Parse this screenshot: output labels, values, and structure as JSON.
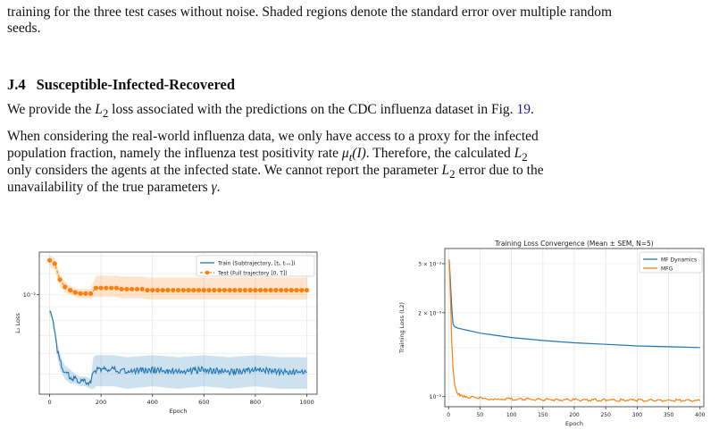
{
  "caption": {
    "line1": "training for the three test cases without noise. Shaded regions denote the standard error over multiple random",
    "line2": "seeds."
  },
  "section": {
    "number": "J.4",
    "title": "Susceptible-Infected-Recovered"
  },
  "para1": {
    "before": "We provide the ",
    "loss": "L",
    "loss_sub": "2",
    "middle": " loss associated with the predictions on the CDC influenza dataset in Fig. ",
    "fig_ref": "19",
    "end": "."
  },
  "para2": {
    "l1_a": "When considering the real-world influenza data, we only have access to a proxy for the infected",
    "l2_a": "population fraction, namely the influenza test positivity rate ",
    "l2_math": "μ",
    "l2_math_sub": "t",
    "l2_math_arg": "(I)",
    "l2_b": ". Therefore, the calculated ",
    "l2_loss": "L",
    "l2_loss_sub": "2",
    "l3_a": "only considers the agents at the infected state. We cannot report the parameter ",
    "l3_loss": "L",
    "l3_loss_sub": "2",
    "l3_b": " error due to the",
    "l4_a": "unavailability of the true parameters ",
    "l4_math": "γ",
    "l4_b": "."
  },
  "colors": {
    "train": "#1f77b4",
    "test": "#ff7f0e",
    "mfg": "#ff7f0e",
    "mfdyn": "#1f77b4"
  },
  "chart_data": [
    {
      "type": "line",
      "title": "",
      "xlabel": "Epoch",
      "ylabel": "L₂ Loss",
      "xlim": [
        -40,
        1040
      ],
      "ylim_log": [
        0.0042,
        0.0145
      ],
      "yscale": "log",
      "xticks": [
        "0",
        "200",
        "400",
        "600",
        "800",
        "1000"
      ],
      "yticks": [
        {
          "value": 0.01,
          "label": "10⁻²"
        }
      ],
      "legend_position": "top-right",
      "grid": true,
      "series": [
        {
          "name": "Train (Subtrajectory, [tᵢ, tᵢ₊ₖ])",
          "marker": "none",
          "x": [
            0,
            10,
            20,
            30,
            40,
            50,
            60,
            70,
            80,
            100,
            120,
            140,
            160,
            170,
            180,
            200,
            250,
            300,
            400,
            500,
            600,
            700,
            800,
            900,
            1000
          ],
          "y": [
            0.0086,
            0.0082,
            0.0074,
            0.0062,
            0.0056,
            0.0053,
            0.0051,
            0.005,
            0.0049,
            0.0048,
            0.0047,
            0.0047,
            0.0046,
            0.0051,
            0.0052,
            0.0052,
            0.0052,
            0.0051,
            0.0052,
            0.0051,
            0.0052,
            0.0051,
            0.0052,
            0.0051,
            0.0051
          ],
          "err": [
            0.0002,
            0.0002,
            0.0004,
            0.0004,
            0.0004,
            0.0003,
            0.0003,
            0.0003,
            0.0003,
            0.0002,
            0.0002,
            0.0002,
            0.0002,
            0.0007,
            0.0007,
            0.0007,
            0.0007,
            0.0007,
            0.0007,
            0.0007,
            0.0007,
            0.0007,
            0.0007,
            0.0007,
            0.0007
          ]
        },
        {
          "name": "Test (Full trajectory [0, T])",
          "marker": "circle",
          "x": [
            0,
            20,
            40,
            60,
            80,
            100,
            120,
            140,
            160,
            180,
            200,
            220,
            240,
            260,
            280,
            300,
            320,
            340,
            360,
            380,
            400,
            420,
            440,
            460,
            480,
            500,
            520,
            540,
            560,
            580,
            600,
            620,
            640,
            660,
            680,
            700,
            720,
            740,
            760,
            780,
            800,
            820,
            840,
            860,
            880,
            900,
            920,
            940,
            960,
            980,
            1000
          ],
          "y": [
            0.0135,
            0.0131,
            0.0114,
            0.0107,
            0.0104,
            0.0102,
            0.0101,
            0.0101,
            0.0101,
            0.0106,
            0.0106,
            0.0106,
            0.0106,
            0.0106,
            0.0105,
            0.0105,
            0.0105,
            0.0105,
            0.0105,
            0.0104,
            0.0104,
            0.0104,
            0.0104,
            0.0104,
            0.0104,
            0.0104,
            0.0104,
            0.0104,
            0.0104,
            0.0104,
            0.0104,
            0.0104,
            0.0104,
            0.0104,
            0.0104,
            0.0104,
            0.0104,
            0.0104,
            0.0104,
            0.0104,
            0.0104,
            0.0104,
            0.0104,
            0.0104,
            0.0104,
            0.0104,
            0.0104,
            0.0104,
            0.0104,
            0.0104,
            0.0104
          ],
          "err_lo": [
            0.0007,
            0.0007,
            0.0006,
            0.0005,
            0.0004,
            0.0004,
            0.0004,
            0.0004,
            0.0004,
            0.0008,
            0.0008,
            0.0008,
            0.0008,
            0.0008,
            0.0008,
            0.0008,
            0.0008,
            0.0008,
            0.0008,
            0.0008,
            0.0008,
            0.0008,
            0.0008,
            0.0008,
            0.0008,
            0.0008,
            0.0008,
            0.0008,
            0.0008,
            0.0008,
            0.0008,
            0.0008,
            0.0008,
            0.0008,
            0.0008,
            0.0008,
            0.0008,
            0.0008,
            0.0008,
            0.0008,
            0.0008,
            0.0008,
            0.0008,
            0.0008,
            0.0008,
            0.0008,
            0.0008,
            0.0008,
            0.0008,
            0.0008,
            0.0008
          ],
          "err_hi": [
            0.0006,
            0.0006,
            0.0006,
            0.0005,
            0.0004,
            0.0004,
            0.0004,
            0.0004,
            0.0004,
            0.0012,
            0.0012,
            0.0012,
            0.0012,
            0.0012,
            0.0012,
            0.0012,
            0.0012,
            0.0012,
            0.0012,
            0.0012,
            0.0012,
            0.0012,
            0.0012,
            0.0012,
            0.0012,
            0.0012,
            0.0012,
            0.0012,
            0.0012,
            0.0012,
            0.0012,
            0.0012,
            0.0012,
            0.0012,
            0.0012,
            0.0012,
            0.0012,
            0.0012,
            0.0012,
            0.0012,
            0.0012,
            0.0012,
            0.0012,
            0.0012,
            0.0012,
            0.0012,
            0.0012,
            0.0012,
            0.0012,
            0.0012,
            0.0012
          ]
        }
      ]
    },
    {
      "type": "line",
      "title": "Training Loss Convergence (Mean ± SEM, N=5)",
      "xlabel": "Epoch",
      "ylabel": "Training Loss (L2)",
      "xlim": [
        -6,
        406
      ],
      "ylim_log": [
        0.00092,
        0.0034
      ],
      "yscale": "log",
      "xticks": [
        "0",
        "50",
        "100",
        "150",
        "200",
        "250",
        "300",
        "350",
        "400"
      ],
      "yticks": [
        {
          "value": 0.003,
          "label": "3 × 10⁻³"
        },
        {
          "value": 0.002,
          "label": "2 × 10⁻³"
        },
        {
          "value": 0.001,
          "label": "10⁻³"
        }
      ],
      "legend_position": "top-right",
      "grid": true,
      "series": [
        {
          "name": "MF Dynamics",
          "x": [
            1,
            3,
            5,
            7,
            10,
            15,
            20,
            30,
            40,
            50,
            75,
            100,
            150,
            200,
            250,
            300,
            350,
            400
          ],
          "y": [
            0.0031,
            0.0026,
            0.0021,
            0.00182,
            0.00178,
            0.00176,
            0.00175,
            0.00173,
            0.00171,
            0.00169,
            0.00166,
            0.00163,
            0.00159,
            0.00156,
            0.00154,
            0.00152,
            0.00151,
            0.0015
          ]
        },
        {
          "name": "MFG",
          "x": [
            1,
            3,
            5,
            7,
            10,
            12,
            15,
            20,
            25,
            30,
            40,
            50,
            75,
            100,
            150,
            200,
            250,
            300,
            350,
            400
          ],
          "y": [
            0.0031,
            0.0023,
            0.0016,
            0.00125,
            0.00109,
            0.00105,
            0.00102,
            0.00101,
            0.001,
            0.000998,
            0.000992,
            0.000988,
            0.000983,
            0.00098,
            0.000976,
            0.000974,
            0.000972,
            0.00097,
            0.000969,
            0.000968
          ]
        }
      ]
    }
  ]
}
